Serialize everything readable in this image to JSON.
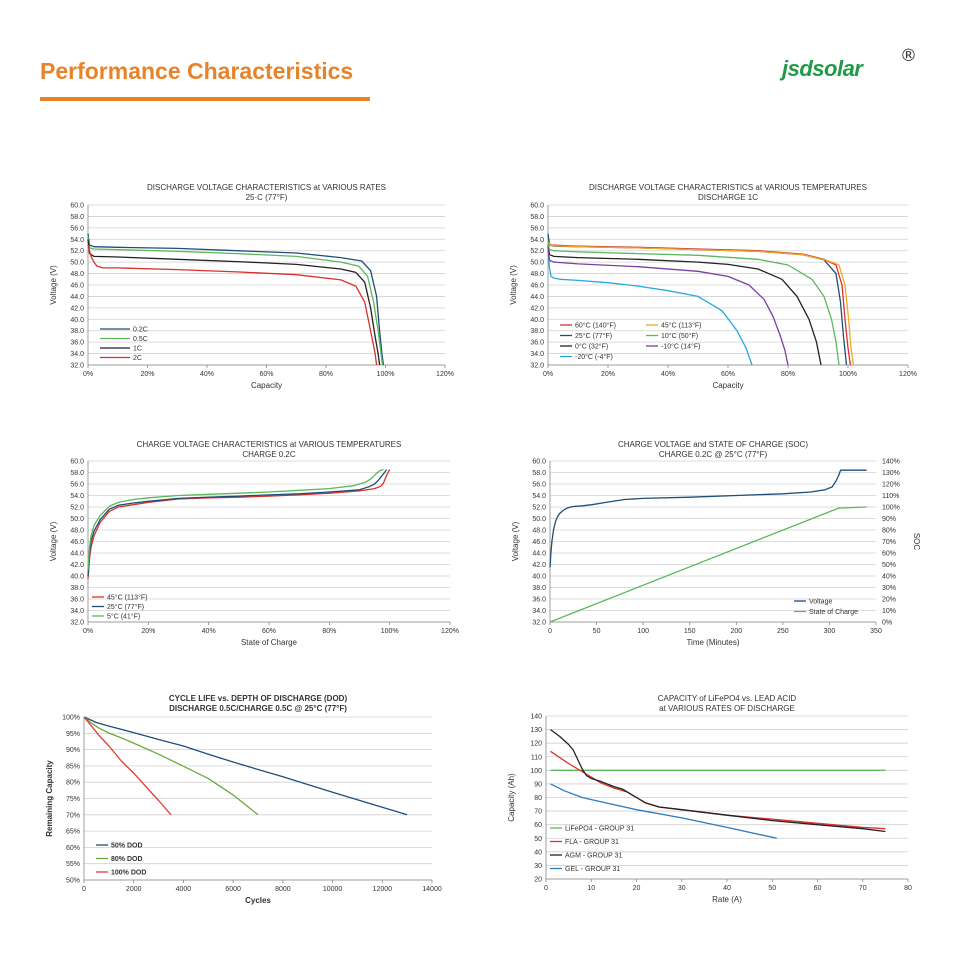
{
  "header": {
    "title": "Performance Characteristics",
    "brand": "jsdsolar",
    "brand_mark": "®"
  },
  "colors": {
    "accent": "#e8832a",
    "brand": "#1f9a48",
    "grid": "#d0d0d0"
  },
  "chart_data": [
    {
      "type": "line",
      "title": "DISCHARGE VOLTAGE CHARACTERISTICS at VARIOUS RATES",
      "subtitle": "25·C (77°F)",
      "xlabel": "Capacity",
      "ylabel": "Voltage (V)",
      "xlim": [
        0,
        120
      ],
      "ylim": [
        32,
        60
      ],
      "xticks": [
        0,
        20,
        40,
        60,
        80,
        100,
        120
      ],
      "yticks": [
        32,
        34,
        36,
        38,
        40,
        42,
        44,
        46,
        48,
        50,
        52,
        54,
        56,
        58,
        60
      ],
      "x_unit": "%",
      "y_decimals": 1,
      "grid": true,
      "legend_position": "bottom-left",
      "series": [
        {
          "name": "0.2C",
          "color": "#1f4e79",
          "x": [
            0,
            0.5,
            2,
            10,
            30,
            50,
            70,
            85,
            92,
            95,
            97,
            98,
            98.8,
            99.3
          ],
          "y": [
            55,
            53,
            52.7,
            52.6,
            52.4,
            52,
            51.6,
            50.8,
            50.2,
            48.5,
            44,
            38,
            34,
            32
          ]
        },
        {
          "name": "0.5C",
          "color": "#5cb85c",
          "x": [
            0,
            0.5,
            2,
            10,
            30,
            50,
            70,
            85,
            91,
            94,
            96,
            97.5,
            98.5,
            99
          ],
          "y": [
            54.5,
            52.5,
            52.3,
            52.2,
            51.9,
            51.5,
            51,
            50,
            49.3,
            47.5,
            43,
            38,
            34,
            32
          ]
        },
        {
          "name": "1C",
          "color": "#222222",
          "x": [
            0,
            0.5,
            2,
            10,
            30,
            50,
            70,
            85,
            90,
            93,
            95,
            96.5,
            97.5,
            98
          ],
          "y": [
            54,
            51.5,
            51,
            50.9,
            50.5,
            50.1,
            49.6,
            48.8,
            48.2,
            46.5,
            42,
            37,
            34,
            32
          ]
        },
        {
          "name": "2C",
          "color": "#d9312b",
          "x": [
            0,
            1,
            2,
            3,
            5,
            10,
            30,
            50,
            70,
            85,
            90,
            93,
            95,
            96.5,
            97
          ],
          "y": [
            53,
            51,
            50,
            49.3,
            49,
            49,
            48.7,
            48.3,
            47.8,
            46.9,
            45.8,
            43,
            38,
            34,
            32
          ]
        }
      ]
    },
    {
      "type": "line",
      "title": "DISCHARGE VOLTAGE CHARACTERISTICS at VARIOUS TEMPERATURES",
      "subtitle": "DISCHARGE 1C",
      "xlabel": "Capacity",
      "ylabel": "Voltage (V)",
      "xlim": [
        0,
        120
      ],
      "ylim": [
        32,
        60
      ],
      "xticks": [
        0,
        20,
        40,
        60,
        80,
        100,
        120
      ],
      "yticks": [
        32,
        34,
        36,
        38,
        40,
        42,
        44,
        46,
        48,
        50,
        52,
        54,
        56,
        58,
        60
      ],
      "x_unit": "%",
      "y_decimals": 1,
      "grid": true,
      "legend_position": "bottom-left",
      "series": [
        {
          "name": "60°C  (140°F)",
          "color": "#d9312b",
          "x": [
            0,
            1,
            10,
            30,
            50,
            70,
            85,
            92,
            96,
            98,
            99,
            100,
            100.8
          ],
          "y": [
            53.5,
            53,
            52.8,
            52.6,
            52.3,
            52,
            51.4,
            50.5,
            49.5,
            46,
            40,
            35,
            32
          ]
        },
        {
          "name": "25°C  (77°F)",
          "color": "#1f4e79",
          "x": [
            0,
            0.5,
            2,
            10,
            30,
            50,
            70,
            85,
            92,
            96,
            97.5,
            98.5,
            99.5
          ],
          "y": [
            55,
            53,
            52.8,
            52.7,
            52.5,
            52.2,
            51.9,
            51.3,
            50.4,
            48,
            43,
            37,
            32
          ]
        },
        {
          "name": "0°C  (32°F)",
          "color": "#222222",
          "x": [
            0,
            0.5,
            2,
            10,
            30,
            50,
            60,
            70,
            78,
            83,
            87,
            89.5,
            91
          ],
          "y": [
            53,
            51.3,
            51,
            50.8,
            50.5,
            50,
            49.6,
            48.8,
            47,
            44,
            40,
            36,
            32
          ]
        },
        {
          "name": "-20°C  (-4°F)",
          "color": "#29a8df",
          "x": [
            0,
            0.5,
            1,
            2,
            4,
            10,
            20,
            30,
            40,
            50,
            58,
            63,
            66,
            68
          ],
          "y": [
            52,
            49,
            47.5,
            47.2,
            47,
            46.8,
            46.4,
            45.8,
            45,
            44,
            41.5,
            38,
            35,
            32
          ]
        },
        {
          "name": "45°C  (113°F)",
          "color": "#f5a623",
          "x": [
            0,
            1,
            10,
            30,
            50,
            70,
            85,
            93,
            97,
            99,
            100.2,
            101,
            101.8
          ],
          "y": [
            53.5,
            52.9,
            52.7,
            52.5,
            52.2,
            51.9,
            51.3,
            50.3,
            49.5,
            46,
            40,
            35,
            32
          ]
        },
        {
          "name": "10°C  (50°F)",
          "color": "#5cb85c",
          "x": [
            0,
            0.5,
            2,
            10,
            30,
            50,
            70,
            80,
            88,
            92,
            94.5,
            96,
            97
          ],
          "y": [
            53.5,
            52.2,
            52,
            51.8,
            51.5,
            51.2,
            50.5,
            49.5,
            47,
            44,
            40,
            36,
            32
          ]
        },
        {
          "name": "-10°C  (14°F)",
          "color": "#7b3f9e",
          "x": [
            0,
            0.5,
            2,
            10,
            30,
            50,
            60,
            67,
            72,
            75,
            77.5,
            79,
            80
          ],
          "y": [
            52.5,
            50.3,
            50,
            49.7,
            49.2,
            48.4,
            47.5,
            46,
            43.5,
            40.5,
            37,
            34.5,
            32
          ]
        }
      ]
    },
    {
      "type": "line",
      "title": "CHARGE VOLTAGE CHARACTERISTICS at VARIOUS TEMPERATURES",
      "subtitle": "CHARGE 0.2C",
      "xlabel": "State of Charge",
      "ylabel": "Voltage (V)",
      "xlim": [
        0,
        120
      ],
      "ylim": [
        32,
        60
      ],
      "xticks": [
        0,
        20,
        40,
        60,
        80,
        100,
        120
      ],
      "yticks": [
        32,
        34,
        36,
        38,
        40,
        42,
        44,
        46,
        48,
        50,
        52,
        54,
        56,
        58,
        60
      ],
      "x_unit": "%",
      "y_decimals": 1,
      "grid": true,
      "legend_position": "bottom-left",
      "series": [
        {
          "name": "45°C  (113°F)",
          "color": "#d9312b",
          "x": [
            0,
            0.5,
            1,
            2,
            4,
            7,
            10,
            15,
            20,
            30,
            40,
            50,
            60,
            70,
            80,
            90,
            95,
            97,
            98,
            99,
            100
          ],
          "y": [
            39.5,
            43,
            45,
            47,
            49.3,
            51.2,
            52,
            52.4,
            52.8,
            53.4,
            53.6,
            53.7,
            53.9,
            54.1,
            54.4,
            54.8,
            55.2,
            55.6,
            56.2,
            57.5,
            58.5
          ]
        },
        {
          "name": "25°C  (77°F)",
          "color": "#1f4e79",
          "x": [
            0,
            0.5,
            1,
            2,
            4,
            7,
            10,
            15,
            20,
            30,
            40,
            50,
            60,
            70,
            80,
            90,
            93,
            95,
            96.5,
            98,
            99
          ],
          "y": [
            40,
            44,
            46,
            47.8,
            49.8,
            51.6,
            52.3,
            52.7,
            53,
            53.5,
            53.7,
            53.9,
            54.1,
            54.3,
            54.6,
            55,
            55.5,
            56,
            56.8,
            57.8,
            58.5
          ]
        },
        {
          "name": "5°C  (41°F)",
          "color": "#5cb85c",
          "x": [
            0,
            0.5,
            1,
            2,
            4,
            7,
            10,
            15,
            20,
            30,
            40,
            50,
            60,
            70,
            80,
            88,
            92,
            94,
            95.5,
            97,
            98
          ],
          "y": [
            41,
            45,
            47,
            48.8,
            50.5,
            52.1,
            52.8,
            53.3,
            53.6,
            54,
            54.2,
            54.4,
            54.6,
            54.9,
            55.2,
            55.7,
            56.3,
            57,
            57.8,
            58.4,
            58.5
          ]
        }
      ]
    },
    {
      "type": "line",
      "title": "CHARGE VOLTAGE and STATE OF CHARGE (SOC)",
      "subtitle": "CHARGE 0.2C @ 25°C (77°F)",
      "xlabel": "Time (Minutes)",
      "ylabel": "Voltage (V)",
      "y2label": "SOC",
      "xlim": [
        0,
        350
      ],
      "ylim": [
        32,
        60
      ],
      "y2lim": [
        0,
        140
      ],
      "xticks": [
        0,
        50,
        100,
        150,
        200,
        250,
        300,
        350
      ],
      "yticks": [
        32,
        34,
        36,
        38,
        40,
        42,
        44,
        46,
        48,
        50,
        52,
        54,
        56,
        58,
        60
      ],
      "y2ticks": [
        0,
        10,
        20,
        30,
        40,
        50,
        60,
        70,
        80,
        90,
        100,
        110,
        120,
        130,
        140
      ],
      "y_decimals": 1,
      "y2_unit": "%",
      "grid": true,
      "legend_position": "bottom-right",
      "series": [
        {
          "name": "Voltage",
          "color": "#1f4e79",
          "axis": "left",
          "x": [
            0,
            1,
            2,
            4,
            6,
            8,
            10,
            14,
            18,
            22,
            26,
            35,
            45,
            60,
            80,
            100,
            150,
            200,
            250,
            280,
            295,
            303,
            307,
            310,
            312,
            340
          ],
          "y": [
            41.5,
            44,
            46,
            48.2,
            49.5,
            50.3,
            50.8,
            51.4,
            51.8,
            52,
            52.1,
            52.2,
            52.4,
            52.8,
            53.3,
            53.5,
            53.7,
            54,
            54.3,
            54.6,
            55,
            55.5,
            56.5,
            57.5,
            58.4,
            58.4
          ]
        },
        {
          "name": "State of Charge",
          "color": "#5cb85c",
          "axis": "right",
          "x": [
            0,
            310,
            340
          ],
          "y": [
            0,
            99,
            100
          ]
        }
      ]
    },
    {
      "type": "line",
      "title": "CYCLE LIFE vs. DEPTH OF DISCHARGE (DOD)",
      "subtitle": "DISCHARGE 0.5C/CHARGE 0.5C @ 25°C (77°F)",
      "xlabel": "Cycles",
      "ylabel": "Remaining Capacity",
      "xlim": [
        0,
        14000
      ],
      "ylim": [
        50,
        100
      ],
      "xticks": [
        0,
        2000,
        4000,
        6000,
        8000,
        10000,
        12000,
        14000
      ],
      "yticks": [
        50,
        55,
        60,
        65,
        70,
        75,
        80,
        85,
        90,
        95,
        100
      ],
      "y_unit": "%",
      "y_decimals": 0,
      "grid": true,
      "legend_position": "bottom-left",
      "series": [
        {
          "name": "50% DOD",
          "color": "#1f4e79",
          "x": [
            0,
            500,
            1000,
            2000,
            3000,
            4000,
            5000,
            6000,
            7000,
            8000,
            9000,
            10000,
            11000,
            12000,
            13000
          ],
          "y": [
            100,
            98.3,
            97.2,
            95.2,
            93.1,
            91.1,
            88.6,
            86.2,
            83.9,
            81.7,
            79.3,
            76.9,
            74.6,
            72.3,
            70
          ]
        },
        {
          "name": "80% DOD",
          "color": "#6aaa3a",
          "x": [
            0,
            300,
            600,
            1000,
            1500,
            2000,
            3000,
            4000,
            5000,
            6000,
            7000
          ],
          "y": [
            100,
            98.1,
            96.6,
            95.1,
            93.6,
            92,
            88.6,
            84.9,
            81.1,
            76.1,
            70
          ]
        },
        {
          "name": "100% DOD",
          "color": "#e23b32",
          "x": [
            0,
            300,
            600,
            1000,
            1500,
            2000,
            2500,
            3000,
            3500
          ],
          "y": [
            100,
            97.2,
            94.4,
            91.1,
            86.5,
            82.8,
            78.6,
            74.4,
            70
          ]
        }
      ]
    },
    {
      "type": "line",
      "title": "CAPACITY of LiFePO4 vs. LEAD ACID",
      "subtitle": "at VARIOUS RATES OF DISCHARGE",
      "xlabel": "Rate (A)",
      "ylabel": "Capacity (Ah)",
      "xlim": [
        0,
        80
      ],
      "ylim": [
        20,
        140
      ],
      "xticks": [
        0,
        10,
        20,
        30,
        40,
        50,
        60,
        70,
        80
      ],
      "yticks": [
        20,
        30,
        40,
        50,
        60,
        70,
        80,
        90,
        100,
        110,
        120,
        130,
        140
      ],
      "y_decimals": 0,
      "grid": true,
      "legend_position": "bottom-left",
      "series": [
        {
          "name": "LiFePO4 - GROUP 31",
          "color": "#5cb85c",
          "x": [
            1,
            75
          ],
          "y": [
            100,
            100
          ]
        },
        {
          "name": "FLA - GROUP 31",
          "color": "#d9312b",
          "x": [
            1,
            5,
            8,
            10,
            12,
            15,
            17,
            18,
            20,
            22,
            25,
            30,
            40,
            50,
            60,
            70,
            75
          ],
          "y": [
            114,
            105,
            99,
            95,
            91,
            87,
            85,
            84,
            80,
            76,
            73,
            71,
            67,
            64,
            61,
            58,
            57
          ]
        },
        {
          "name": "AGM - GROUP 31",
          "color": "#222222",
          "x": [
            1,
            3,
            5,
            6,
            7,
            8,
            9,
            10,
            12,
            15,
            17,
            18,
            20,
            22,
            25,
            30,
            40,
            50,
            60,
            70,
            75
          ],
          "y": [
            130,
            125,
            119,
            115,
            108,
            101,
            96,
            94,
            92,
            88,
            86,
            84,
            80,
            76,
            73,
            71,
            67,
            63,
            60,
            57,
            55
          ]
        },
        {
          "name": "GEL - GROUP 31",
          "color": "#2b7bbf",
          "x": [
            1,
            4,
            8,
            12,
            20,
            30,
            40,
            51
          ],
          "y": [
            90,
            85,
            80,
            77,
            71,
            65,
            58,
            50
          ]
        }
      ]
    }
  ]
}
